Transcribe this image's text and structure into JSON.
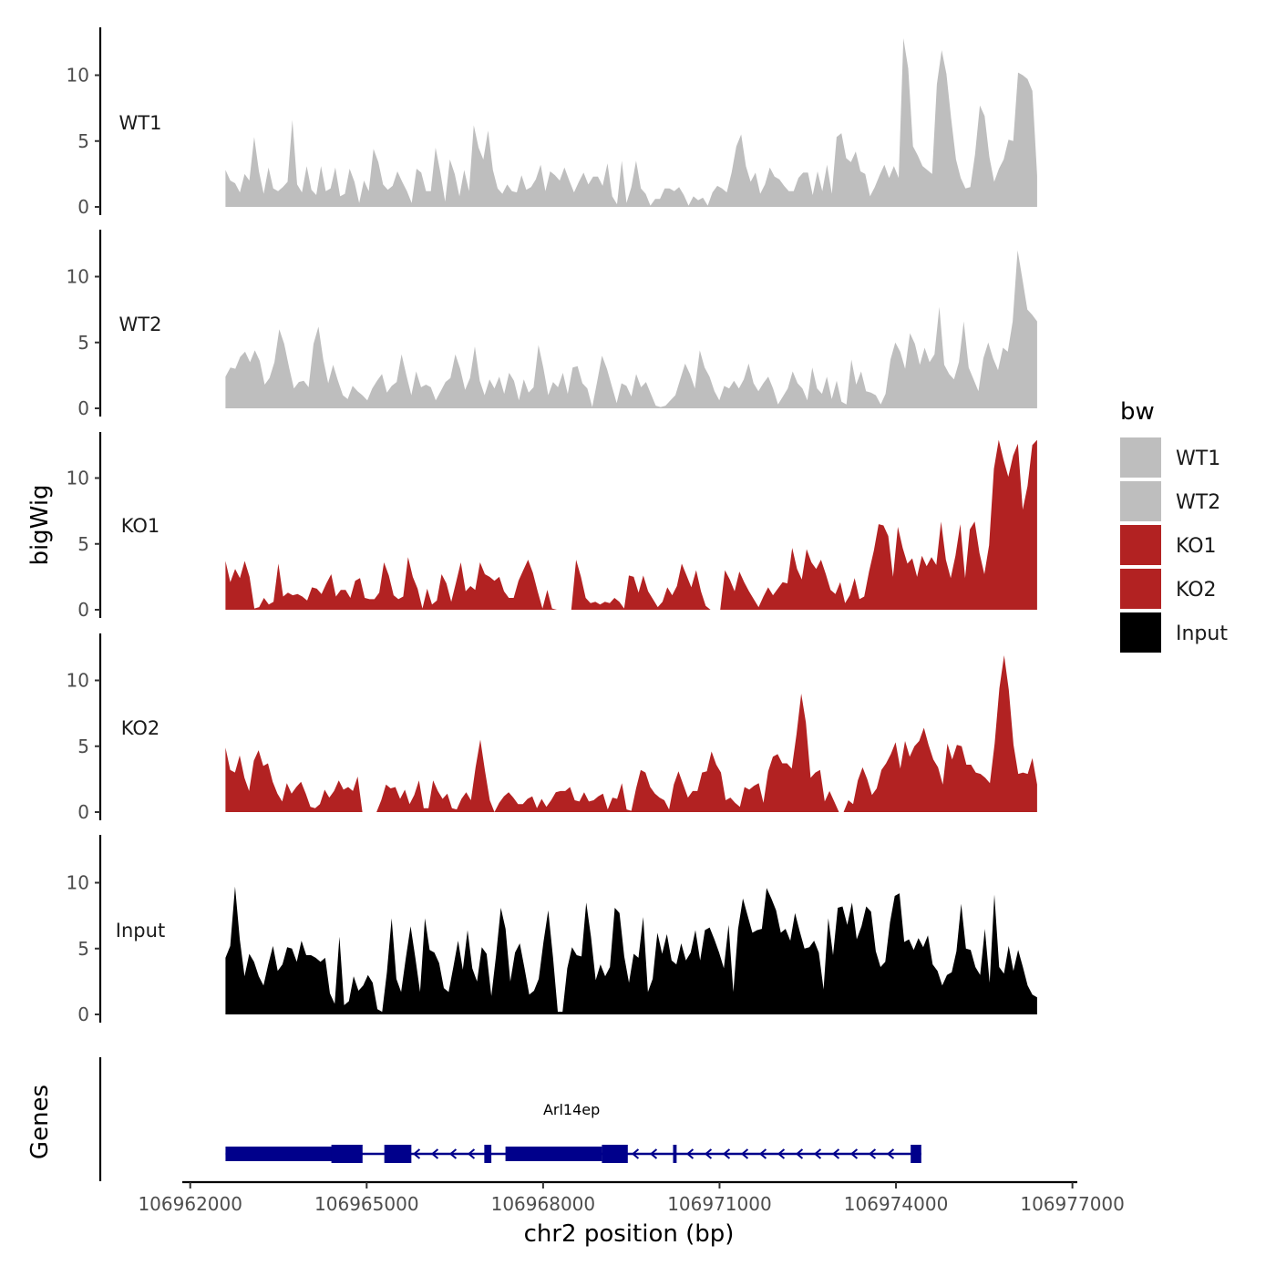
{
  "chart_data": {
    "type": "area",
    "region_start": 106962600,
    "region_end": 106976400,
    "xlabel": "chr2 position (bp)",
    "ylabel": "bigWig",
    "genes_label": "Genes",
    "ylim": [
      0,
      13.5
    ],
    "x_ticks": [
      106962000,
      106965000,
      106968000,
      106971000,
      106974000,
      106977000
    ],
    "x_tick_labels": [
      "106962000",
      "106965000",
      "106968000",
      "106971000",
      "106974000",
      "106977000"
    ],
    "x_range": [
      106961950,
      106977060
    ],
    "y_ticks": [
      0,
      5,
      10
    ],
    "y_tick_labels": [
      "0",
      "5",
      "10"
    ],
    "legend": {
      "title": "bw",
      "entries": [
        {
          "label": "WT1",
          "color": "#bebebe"
        },
        {
          "label": "WT2",
          "color": "#bebebe"
        },
        {
          "label": "KO1",
          "color": "#b22222"
        },
        {
          "label": "KO2",
          "color": "#b22222"
        },
        {
          "label": "Input",
          "color": "#000000"
        }
      ]
    },
    "series": [
      {
        "name": "WT1",
        "color": "#bebebe",
        "values": [
          2.8,
          2.0,
          1.8,
          1.1,
          2.5,
          2.0,
          5.3,
          2.7,
          1.0,
          3.0,
          1.4,
          1.2,
          1.5,
          1.9,
          6.6,
          1.7,
          1.1,
          3.1,
          1.3,
          0.9,
          3.1,
          1.2,
          1.4,
          3.0,
          0.8,
          1.0,
          2.9,
          1.9,
          0.3,
          2.0,
          1.2,
          4.4,
          3.4,
          1.7,
          1.3,
          1.6,
          2.7,
          1.9,
          1.2,
          0.3,
          2.9,
          2.6,
          1.2,
          1.2,
          4.5,
          2.6,
          0.4,
          3.6,
          2.5,
          0.8,
          2.8,
          1.2,
          6.2,
          4.5,
          3.6,
          5.8,
          2.8,
          1.4,
          1.0,
          1.7,
          1.2,
          1.1,
          2.4,
          1.3,
          1.5,
          2.1,
          3.2,
          1.2,
          2.7,
          2.4,
          2.0,
          3.0,
          2.0,
          1.1,
          1.9,
          2.6,
          1.7,
          2.3,
          2.3,
          1.6,
          3.3,
          0.8,
          0.2,
          3.5,
          0.3,
          1.5,
          3.5,
          1.4,
          1.0,
          0.1,
          0.6,
          0.6,
          1.4,
          1.4,
          1.2,
          1.5,
          0.9,
          0.1,
          0.8,
          0.5,
          0.7,
          0.1,
          1.1,
          1.6,
          1.4,
          1.1,
          2.6,
          4.6,
          5.5,
          3.1,
          1.9,
          2.6,
          1.0,
          1.7,
          3.0,
          2.3,
          2.1,
          1.6,
          1.2,
          1.2,
          2.2,
          2.6,
          2.6,
          0.9,
          2.7,
          1.2,
          3.2,
          1.0,
          5.3,
          5.6,
          3.7,
          3.4,
          4.2,
          2.7,
          2.5,
          0.8,
          1.5,
          2.4,
          3.2,
          2.2,
          3.1,
          2.2,
          12.8,
          10.5,
          4.6,
          3.9,
          3.1,
          2.8,
          2.5,
          9.3,
          11.9,
          10.1,
          6.7,
          3.6,
          2.2,
          1.4,
          1.5,
          4.0,
          7.7,
          6.9,
          3.8,
          1.9,
          2.9,
          3.6,
          5.1,
          5.0,
          10.2,
          10.0,
          9.7,
          8.8,
          2.4
        ]
      },
      {
        "name": "WT2",
        "color": "#bebebe",
        "values": [
          2.4,
          3.1,
          3.0,
          3.9,
          4.3,
          3.5,
          4.4,
          3.6,
          1.8,
          2.3,
          3.5,
          6.0,
          4.9,
          3.1,
          1.5,
          2.0,
          2.1,
          1.6,
          4.9,
          6.2,
          3.7,
          1.9,
          3.3,
          2.1,
          1.0,
          0.7,
          1.7,
          1.3,
          1.0,
          0.6,
          1.5,
          2.1,
          2.6,
          1.2,
          1.7,
          2.0,
          4.1,
          2.5,
          1.0,
          2.8,
          1.6,
          1.8,
          1.6,
          0.6,
          1.3,
          2.0,
          2.3,
          4.1,
          3.0,
          1.4,
          2.3,
          4.7,
          2.1,
          1.0,
          2.2,
          1.5,
          2.4,
          1.1,
          2.7,
          2.1,
          0.6,
          2.2,
          1.2,
          1.6,
          4.8,
          3.1,
          1.0,
          2.0,
          1.6,
          2.7,
          1.1,
          3.1,
          3.2,
          1.9,
          1.5,
          0.1,
          2.0,
          4.0,
          3.0,
          1.7,
          0.4,
          1.9,
          1.7,
          0.9,
          2.6,
          1.6,
          2.0,
          1.1,
          0.2,
          0.1,
          0.2,
          0.6,
          1.0,
          2.2,
          3.4,
          2.6,
          1.5,
          4.4,
          3.1,
          2.4,
          1.3,
          0.6,
          1.7,
          1.5,
          2.1,
          1.5,
          2.2,
          3.4,
          1.9,
          1.3,
          1.9,
          2.4,
          1.5,
          0.3,
          0.9,
          1.5,
          2.8,
          1.9,
          1.5,
          0.6,
          3.1,
          1.5,
          1.1,
          2.4,
          0.7,
          2.1,
          0.5,
          0.3,
          3.7,
          1.8,
          2.8,
          1.3,
          1.2,
          1.0,
          0.3,
          1.1,
          3.7,
          5.0,
          4.3,
          3.0,
          5.7,
          4.9,
          3.3,
          4.6,
          3.5,
          4.1,
          7.7,
          3.3,
          2.6,
          2.2,
          3.5,
          6.6,
          3.1,
          2.2,
          1.3,
          3.8,
          5.0,
          3.8,
          2.9,
          4.6,
          4.3,
          6.6,
          12.0,
          9.8,
          7.5,
          7.1,
          6.6
        ]
      },
      {
        "name": "KO1",
        "color": "#b22222",
        "values": [
          3.7,
          2.1,
          3.1,
          2.4,
          3.7,
          2.5,
          0.1,
          0.2,
          0.9,
          0.4,
          0.6,
          3.5,
          1.0,
          1.3,
          1.1,
          1.2,
          1.0,
          0.7,
          1.7,
          1.6,
          1.2,
          2.0,
          2.7,
          1.0,
          1.5,
          1.5,
          0.9,
          2.2,
          2.4,
          0.9,
          0.8,
          0.8,
          1.3,
          3.6,
          2.6,
          1.1,
          0.8,
          1.0,
          4.0,
          2.5,
          1.6,
          0.1,
          1.6,
          0.4,
          0.7,
          2.7,
          2.0,
          0.6,
          2.1,
          3.6,
          1.4,
          1.8,
          1.5,
          3.6,
          2.7,
          2.5,
          2.2,
          2.5,
          1.4,
          0.9,
          0.9,
          2.2,
          3.0,
          3.8,
          2.8,
          1.4,
          0.1,
          1.5,
          0.1,
          0.0,
          0.0,
          0.0,
          0.0,
          3.8,
          2.5,
          0.9,
          0.5,
          0.6,
          0.4,
          0.6,
          0.5,
          0.9,
          0.6,
          0.1,
          2.6,
          2.5,
          1.3,
          2.6,
          1.4,
          0.8,
          0.2,
          0.6,
          1.7,
          1.1,
          1.8,
          3.5,
          2.6,
          1.7,
          3.0,
          1.4,
          0.3,
          0.0,
          0.0,
          0.0,
          3.0,
          2.3,
          1.4,
          2.9,
          2.1,
          1.4,
          0.8,
          0.2,
          1.0,
          1.7,
          1.1,
          1.6,
          2.1,
          2.0,
          4.7,
          3.1,
          2.3,
          4.6,
          3.6,
          3.1,
          3.8,
          2.7,
          1.5,
          1.2,
          2.1,
          0.5,
          1.1,
          2.4,
          0.8,
          1.0,
          2.9,
          4.5,
          6.5,
          6.4,
          5.6,
          2.5,
          6.3,
          4.7,
          3.5,
          3.9,
          2.5,
          4.1,
          3.3,
          4.0,
          3.4,
          6.7,
          3.8,
          2.4,
          4.1,
          6.5,
          2.4,
          6.1,
          6.7,
          4.3,
          2.7,
          4.9,
          10.7,
          12.9,
          11.4,
          10.1,
          11.7,
          12.6,
          7.6,
          9.4,
          12.5,
          12.9
        ]
      },
      {
        "name": "KO2",
        "color": "#b22222",
        "values": [
          4.9,
          3.2,
          3.0,
          4.3,
          2.6,
          1.6,
          3.9,
          4.7,
          3.5,
          3.7,
          2.3,
          1.4,
          0.8,
          2.2,
          1.4,
          1.9,
          2.3,
          1.4,
          0.4,
          0.3,
          0.6,
          1.7,
          1.1,
          1.6,
          2.4,
          1.7,
          1.9,
          1.6,
          2.7,
          0.0,
          0.0,
          0.0,
          0.0,
          0.9,
          2.1,
          1.8,
          1.9,
          1.0,
          1.7,
          0.6,
          1.3,
          2.4,
          0.3,
          0.3,
          2.4,
          1.6,
          1.0,
          1.4,
          0.3,
          0.2,
          1.0,
          1.5,
          0.9,
          3.4,
          5.5,
          3.1,
          0.9,
          0.0,
          0.7,
          1.2,
          1.5,
          1.1,
          0.6,
          0.6,
          1.0,
          1.2,
          0.3,
          1.0,
          0.4,
          0.9,
          1.5,
          1.6,
          1.6,
          1.9,
          0.9,
          0.8,
          1.5,
          0.8,
          0.9,
          1.2,
          1.4,
          0.2,
          1.1,
          1.0,
          2.2,
          0.2,
          0.1,
          1.8,
          3.2,
          3.0,
          1.9,
          1.4,
          1.1,
          0.9,
          0.2,
          2.1,
          3.1,
          2.1,
          1.1,
          1.6,
          1.6,
          3.0,
          3.1,
          4.6,
          3.6,
          3.0,
          0.9,
          1.1,
          0.7,
          0.4,
          1.9,
          1.7,
          2.0,
          2.2,
          0.7,
          3.1,
          4.2,
          4.4,
          3.7,
          3.7,
          3.3,
          5.9,
          9.0,
          6.8,
          2.6,
          3.0,
          3.2,
          0.8,
          1.6,
          0.8,
          0.0,
          0.0,
          0.9,
          0.6,
          2.4,
          3.4,
          2.5,
          1.3,
          1.8,
          3.2,
          3.7,
          4.4,
          5.3,
          3.3,
          5.4,
          4.2,
          5.0,
          5.4,
          6.4,
          5.1,
          4.0,
          3.4,
          2.1,
          5.2,
          4.0,
          5.1,
          5.0,
          3.6,
          3.6,
          3.0,
          2.9,
          2.6,
          2.2,
          5.2,
          9.4,
          11.9,
          9.3,
          5.1,
          2.9,
          3.0,
          2.9,
          4.1,
          2.1
        ]
      },
      {
        "name": "Input",
        "color": "#000000",
        "values": [
          4.3,
          5.2,
          9.7,
          5.7,
          2.9,
          4.6,
          4.0,
          2.9,
          2.2,
          3.8,
          5.2,
          3.3,
          3.8,
          5.1,
          5.0,
          4.0,
          5.6,
          4.5,
          4.5,
          4.3,
          4.0,
          4.3,
          1.6,
          0.8,
          5.9,
          0.7,
          1.0,
          2.9,
          1.8,
          2.2,
          3.0,
          2.4,
          0.4,
          0.2,
          3.2,
          7.3,
          2.7,
          1.7,
          4.3,
          6.7,
          4.3,
          1.7,
          7.3,
          4.9,
          4.7,
          3.9,
          2.0,
          1.7,
          3.6,
          5.6,
          3.4,
          6.4,
          3.5,
          2.5,
          5.1,
          4.6,
          1.4,
          4.5,
          8.1,
          6.5,
          2.5,
          4.7,
          5.4,
          3.5,
          1.5,
          1.8,
          2.7,
          5.5,
          7.9,
          4.3,
          0.2,
          0.2,
          3.5,
          5.1,
          4.5,
          4.4,
          8.5,
          5.9,
          2.6,
          3.8,
          2.9,
          3.6,
          8.1,
          7.7,
          4.4,
          2.4,
          4.6,
          4.3,
          7.4,
          1.7,
          2.7,
          6.2,
          4.6,
          6.1,
          4.1,
          3.8,
          5.4,
          4.1,
          4.7,
          6.4,
          4.1,
          6.4,
          6.6,
          5.7,
          4.7,
          3.5,
          6.8,
          1.7,
          6.5,
          8.8,
          7.5,
          6.2,
          6.4,
          6.5,
          9.6,
          8.8,
          7.9,
          6.2,
          6.5,
          5.6,
          7.7,
          6.3,
          5.0,
          5.1,
          5.6,
          4.7,
          1.9,
          7.3,
          4.5,
          8.1,
          8.2,
          6.8,
          8.5,
          5.7,
          6.7,
          8.2,
          7.8,
          4.8,
          3.6,
          4.0,
          7.0,
          9.0,
          9.2,
          5.5,
          5.7,
          4.9,
          5.8,
          5.1,
          6.0,
          3.8,
          3.3,
          2.2,
          3.0,
          3.2,
          4.8,
          8.4,
          5.0,
          4.9,
          3.6,
          3.0,
          6.5,
          2.4,
          9.1,
          3.6,
          3.1,
          5.2,
          3.3,
          4.9,
          3.6,
          2.2,
          1.5,
          1.3
        ]
      }
    ],
    "gene": {
      "name": "Arl14ep",
      "strand": "-",
      "start": 106962600,
      "end": 106974430,
      "exons": [
        {
          "start": 106962600,
          "end": 106964900,
          "type": "utr"
        },
        {
          "start": 106964400,
          "end": 106964930,
          "type": "cds"
        },
        {
          "start": 106965300,
          "end": 106965760,
          "type": "cds"
        },
        {
          "start": 106967000,
          "end": 106967120,
          "type": "cds"
        },
        {
          "start": 106967360,
          "end": 106969000,
          "type": "utr"
        },
        {
          "start": 106969000,
          "end": 106969440,
          "type": "cds"
        },
        {
          "start": 106970210,
          "end": 106970270,
          "type": "cds"
        },
        {
          "start": 106974250,
          "end": 106974430,
          "type": "cds"
        }
      ],
      "color": "#00008b"
    }
  }
}
